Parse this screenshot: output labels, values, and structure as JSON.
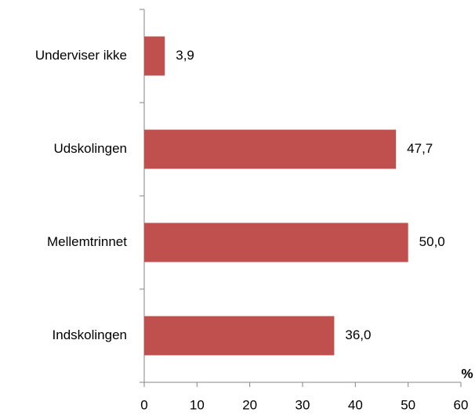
{
  "chart_data": {
    "type": "bar",
    "orientation": "horizontal",
    "categories": [
      "Underviser ikke",
      "Udskolingen",
      "Mellemtrinnet",
      "Indskolingen"
    ],
    "values": [
      3.9,
      47.7,
      50.0,
      36.0
    ],
    "value_labels": [
      "3,9",
      "47,7",
      "50,0",
      "36,0"
    ],
    "color": "#c0504d",
    "x_label": "%",
    "xlim": [
      0,
      60
    ],
    "xticks": [
      0,
      10,
      20,
      30,
      40,
      50,
      60
    ],
    "grid": false
  }
}
